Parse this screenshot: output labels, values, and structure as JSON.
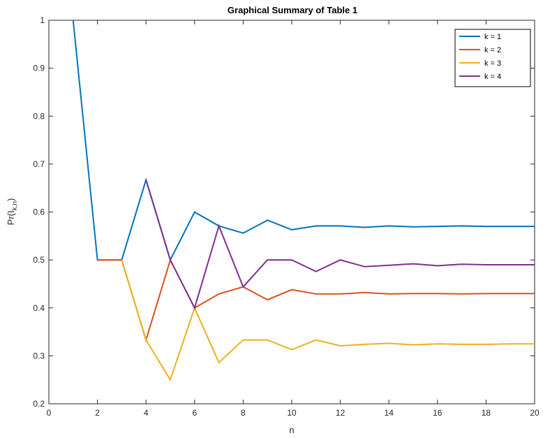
{
  "chart_data": {
    "type": "line",
    "title": "Graphical Summary of Table 1",
    "xlabel": "n",
    "ylabel_main": "Pr(I",
    "ylabel_sub": "k,n",
    "ylabel_close": ")",
    "xlim": [
      0,
      20
    ],
    "ylim": [
      0.2,
      1
    ],
    "xticks": [
      "0",
      "2",
      "4",
      "6",
      "8",
      "10",
      "12",
      "14",
      "16",
      "18",
      "20"
    ],
    "yticks": [
      "0.2",
      "0.3",
      "0.4",
      "0.5",
      "0.6",
      "0.7",
      "0.8",
      "0.9",
      "1"
    ],
    "grid": false,
    "legend_position": "top-right",
    "series": [
      {
        "name": "k = 1",
        "color": "#0072BD",
        "points": [
          [
            1,
            1.0
          ],
          [
            2,
            0.5
          ],
          [
            3,
            0.5
          ],
          [
            4,
            0.667
          ],
          [
            5,
            0.5
          ],
          [
            6,
            0.6
          ],
          [
            7,
            0.571
          ],
          [
            8,
            0.556
          ],
          [
            9,
            0.583
          ],
          [
            10,
            0.563
          ],
          [
            11,
            0.571
          ],
          [
            12,
            0.571
          ],
          [
            13,
            0.568
          ],
          [
            14,
            0.571
          ],
          [
            15,
            0.569
          ],
          [
            16,
            0.57
          ],
          [
            17,
            0.571
          ],
          [
            18,
            0.57
          ],
          [
            19,
            0.57
          ],
          [
            20,
            0.57
          ]
        ]
      },
      {
        "name": "k = 2",
        "color": "#D95319",
        "points": [
          [
            2,
            0.5
          ],
          [
            3,
            0.5
          ],
          [
            4,
            0.333
          ],
          [
            5,
            0.5
          ],
          [
            6,
            0.4
          ],
          [
            7,
            0.429
          ],
          [
            8,
            0.444
          ],
          [
            9,
            0.417
          ],
          [
            10,
            0.438
          ],
          [
            11,
            0.429
          ],
          [
            12,
            0.429
          ],
          [
            13,
            0.432
          ],
          [
            14,
            0.429
          ],
          [
            15,
            0.43
          ],
          [
            16,
            0.43
          ],
          [
            17,
            0.429
          ],
          [
            18,
            0.43
          ],
          [
            19,
            0.43
          ],
          [
            20,
            0.43
          ]
        ]
      },
      {
        "name": "k = 3",
        "color": "#EDB120",
        "points": [
          [
            3,
            0.5
          ],
          [
            4,
            0.333
          ],
          [
            5,
            0.25
          ],
          [
            6,
            0.4
          ],
          [
            7,
            0.286
          ],
          [
            8,
            0.333
          ],
          [
            9,
            0.333
          ],
          [
            10,
            0.313
          ],
          [
            11,
            0.333
          ],
          [
            12,
            0.321
          ],
          [
            13,
            0.324
          ],
          [
            14,
            0.326
          ],
          [
            15,
            0.323
          ],
          [
            16,
            0.325
          ],
          [
            17,
            0.324
          ],
          [
            18,
            0.324
          ],
          [
            19,
            0.325
          ],
          [
            20,
            0.325
          ]
        ]
      },
      {
        "name": "k = 4",
        "color": "#7E2F8E",
        "points": [
          [
            4,
            0.667
          ],
          [
            5,
            0.5
          ],
          [
            6,
            0.4
          ],
          [
            7,
            0.571
          ],
          [
            8,
            0.444
          ],
          [
            9,
            0.5
          ],
          [
            10,
            0.5
          ],
          [
            11,
            0.476
          ],
          [
            12,
            0.5
          ],
          [
            13,
            0.486
          ],
          [
            14,
            0.489
          ],
          [
            15,
            0.492
          ],
          [
            16,
            0.488
          ],
          [
            17,
            0.491
          ],
          [
            18,
            0.49
          ],
          [
            19,
            0.49
          ],
          [
            20,
            0.49
          ]
        ]
      }
    ]
  }
}
